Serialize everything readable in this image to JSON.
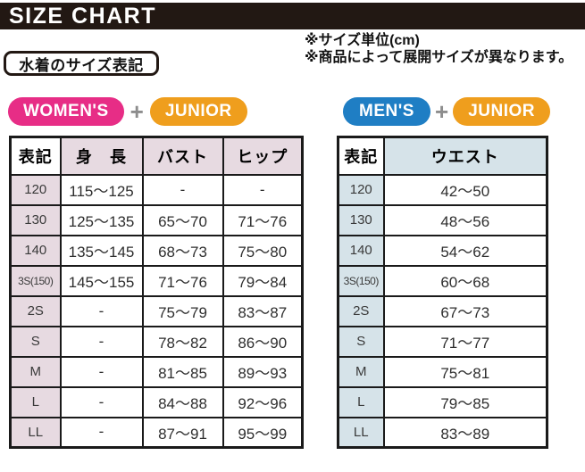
{
  "header": {
    "title": "SIZE CHART",
    "bar_color": "#221813"
  },
  "notes": {
    "unit": "※サイズ単位(cm)",
    "range": "※商品によって展開サイズが異なります。"
  },
  "section_label": "水着のサイズ表記",
  "badges": {
    "womens": {
      "label": "WOMEN'S",
      "color": "#e72d86"
    },
    "junior_left": {
      "label": "JUNIOR",
      "color": "#ef9e1d"
    },
    "mens": {
      "label": "MEN'S",
      "color": "#1f7ec4"
    },
    "junior_right": {
      "label": "JUNIOR",
      "color": "#ef9e1d"
    },
    "plus": "+"
  },
  "chart_data": [
    {
      "type": "table",
      "group": "WOMEN'S + JUNIOR",
      "accent_color": "#e7dae1",
      "columns": [
        "表記",
        "身　長",
        "バスト",
        "ヒップ"
      ],
      "rows": [
        [
          "120",
          "115～125",
          "-",
          "-"
        ],
        [
          "130",
          "125～135",
          "65～70",
          "71～76"
        ],
        [
          "140",
          "135～145",
          "68～73",
          "75～80"
        ],
        [
          "3S(150)",
          "145～155",
          "71～76",
          "79～84"
        ],
        [
          "2S",
          "-",
          "75～79",
          "83～87"
        ],
        [
          "S",
          "-",
          "78～82",
          "86～90"
        ],
        [
          "M",
          "-",
          "81～85",
          "89～93"
        ],
        [
          "L",
          "-",
          "84～88",
          "92～96"
        ],
        [
          "LL",
          "-",
          "87～91",
          "95～99"
        ]
      ]
    },
    {
      "type": "table",
      "group": "MEN'S + JUNIOR",
      "accent_color": "#d6e3e9",
      "columns": [
        "表記",
        "ウエスト"
      ],
      "rows": [
        [
          "120",
          "42～50"
        ],
        [
          "130",
          "48～56"
        ],
        [
          "140",
          "54～62"
        ],
        [
          "3S(150)",
          "60～68"
        ],
        [
          "2S",
          "67～73"
        ],
        [
          "S",
          "71～77"
        ],
        [
          "M",
          "75～81"
        ],
        [
          "L",
          "79～85"
        ],
        [
          "LL",
          "83～89"
        ]
      ]
    }
  ]
}
